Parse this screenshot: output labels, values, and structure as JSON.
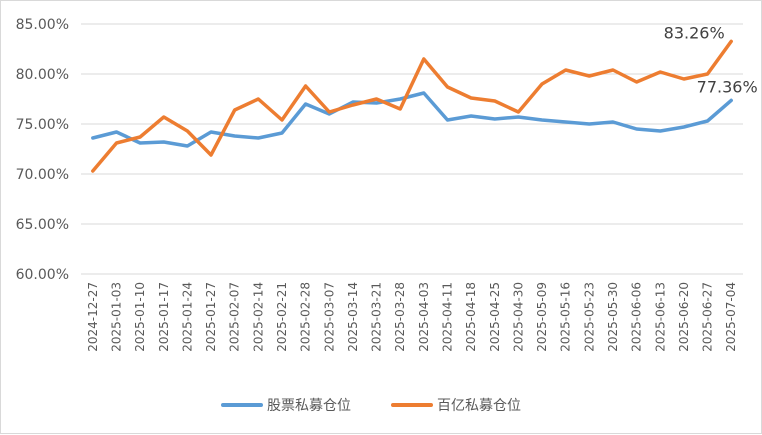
{
  "chart_data": {
    "type": "line",
    "categories": [
      "2024-12-27",
      "2025-01-03",
      "2025-01-10",
      "2025-01-17",
      "2025-01-24",
      "2025-01-27",
      "2025-02-07",
      "2025-02-14",
      "2025-02-21",
      "2025-02-28",
      "2025-03-07",
      "2025-03-14",
      "2025-03-21",
      "2025-03-28",
      "2025-04-03",
      "2025-04-11",
      "2025-04-18",
      "2025-04-25",
      "2025-04-30",
      "2025-05-09",
      "2025-05-16",
      "2025-05-23",
      "2025-05-30",
      "2025-06-06",
      "2025-06-13",
      "2025-06-20",
      "2025-06-27",
      "2025-07-04"
    ],
    "series": [
      {
        "name": "股票私募仓位",
        "color": "#5b9bd5",
        "values": [
          73.6,
          74.2,
          73.1,
          73.2,
          72.8,
          74.2,
          73.8,
          73.6,
          74.1,
          77.0,
          76.0,
          77.2,
          77.1,
          77.5,
          78.1,
          75.4,
          75.8,
          75.5,
          75.7,
          75.4,
          75.2,
          75.0,
          75.2,
          74.5,
          74.3,
          74.7,
          75.3,
          77.36
        ]
      },
      {
        "name": "百亿私募仓位",
        "color": "#ed7d31",
        "values": [
          70.3,
          73.1,
          73.7,
          75.7,
          74.3,
          71.9,
          76.4,
          77.5,
          75.4,
          78.8,
          76.2,
          76.9,
          77.5,
          76.5,
          81.5,
          78.7,
          77.6,
          77.3,
          76.2,
          79.0,
          80.4,
          79.8,
          80.4,
          79.2,
          80.2,
          79.5,
          80.0,
          83.26
        ]
      }
    ],
    "end_labels": [
      "83.26%",
      "77.36%"
    ],
    "ylim": [
      60,
      85
    ],
    "yticks": [
      "60.00%",
      "65.00%",
      "70.00%",
      "75.00%",
      "80.00%",
      "85.00%"
    ],
    "ytick_values": [
      60,
      65,
      70,
      75,
      80,
      85
    ],
    "grid": "horizontal",
    "legend_position": "bottom",
    "title": "",
    "xlabel": "",
    "ylabel": ""
  }
}
